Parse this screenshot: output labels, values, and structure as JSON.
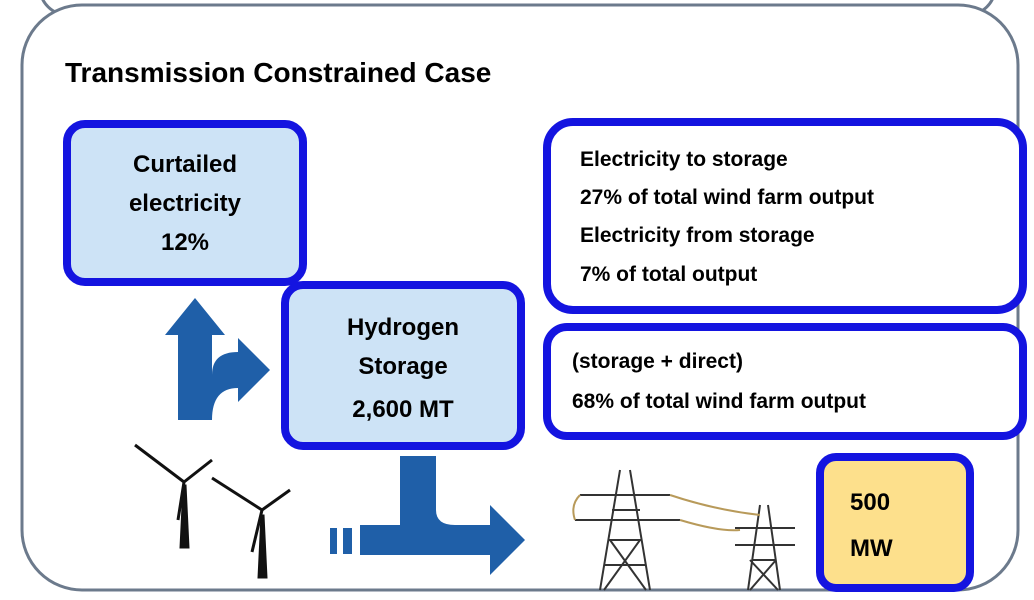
{
  "title": "Transmission Constrained Case",
  "curtailed": {
    "lines": [
      "Curtailed",
      "electricity",
      "12%"
    ]
  },
  "hydrogen": {
    "lines": [
      "Hydrogen",
      "Storage",
      "2,600 MT"
    ]
  },
  "storage_info": {
    "lines": [
      "Electricity to storage",
      "27% of total wind farm output",
      "Electricity from storage",
      "7% of total output"
    ]
  },
  "delivered_info": {
    "lines": [
      "(storage + direct)",
      "68% of total wind farm output"
    ]
  },
  "capacity": {
    "lines": [
      "500",
      "MW"
    ]
  }
}
